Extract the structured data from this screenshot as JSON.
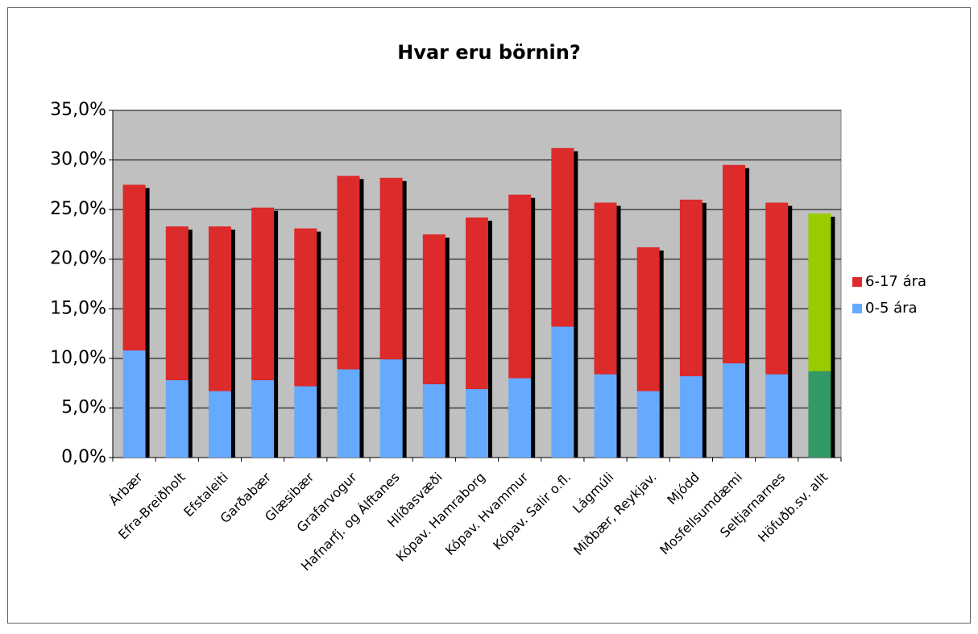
{
  "chart_data": {
    "type": "stacked_bar",
    "title": "Hvar eru börnin?",
    "categories": [
      "Árbær",
      "Efra-Breiðholt",
      "Efstaleiti",
      "Garðabær",
      "Glæsibær",
      "Grafarvogur",
      "Hafnarfj. og Álftanes",
      "Hlíðasvæði",
      "Kópav. Hamraborg",
      "Kópav. Hvammur",
      "Kópav. Salir o.fl.",
      "Lágmúli",
      "Miðbær, Reykjav.",
      "Mjódd",
      "Mosfellsumdæmi",
      "Seltjarnarnes",
      "Höfuðb.sv. allt"
    ],
    "series": [
      {
        "name": "0-5 ára",
        "color": "#66aaff",
        "point_colors": [
          null,
          null,
          null,
          null,
          null,
          null,
          null,
          null,
          null,
          null,
          null,
          null,
          null,
          null,
          null,
          null,
          "#339966"
        ],
        "values": [
          10.8,
          7.8,
          6.7,
          7.8,
          7.2,
          8.9,
          9.9,
          7.4,
          6.9,
          8.0,
          13.2,
          8.4,
          6.7,
          8.2,
          9.5,
          8.4,
          8.7
        ]
      },
      {
        "name": "6-17 ára",
        "color": "#dd2a2a",
        "point_colors": [
          null,
          null,
          null,
          null,
          null,
          null,
          null,
          null,
          null,
          null,
          null,
          null,
          null,
          null,
          null,
          null,
          "#99cc00"
        ],
        "values": [
          16.7,
          15.5,
          16.6,
          17.4,
          15.9,
          19.5,
          18.3,
          15.1,
          17.3,
          18.5,
          18.0,
          17.3,
          14.5,
          17.8,
          20.0,
          17.3,
          15.9
        ]
      }
    ],
    "ylim": [
      0,
      35
    ],
    "yticks": [
      {
        "value": 0,
        "label": "0,0%"
      },
      {
        "value": 5,
        "label": "5,0%"
      },
      {
        "value": 10,
        "label": "10,0%"
      },
      {
        "value": 15,
        "label": "15,0%"
      },
      {
        "value": 20,
        "label": "20,0%"
      },
      {
        "value": 25,
        "label": "25,0%"
      },
      {
        "value": 30,
        "label": "30,0%"
      },
      {
        "value": 35,
        "label": "35,0%"
      }
    ],
    "grid": true,
    "legend": "right"
  }
}
